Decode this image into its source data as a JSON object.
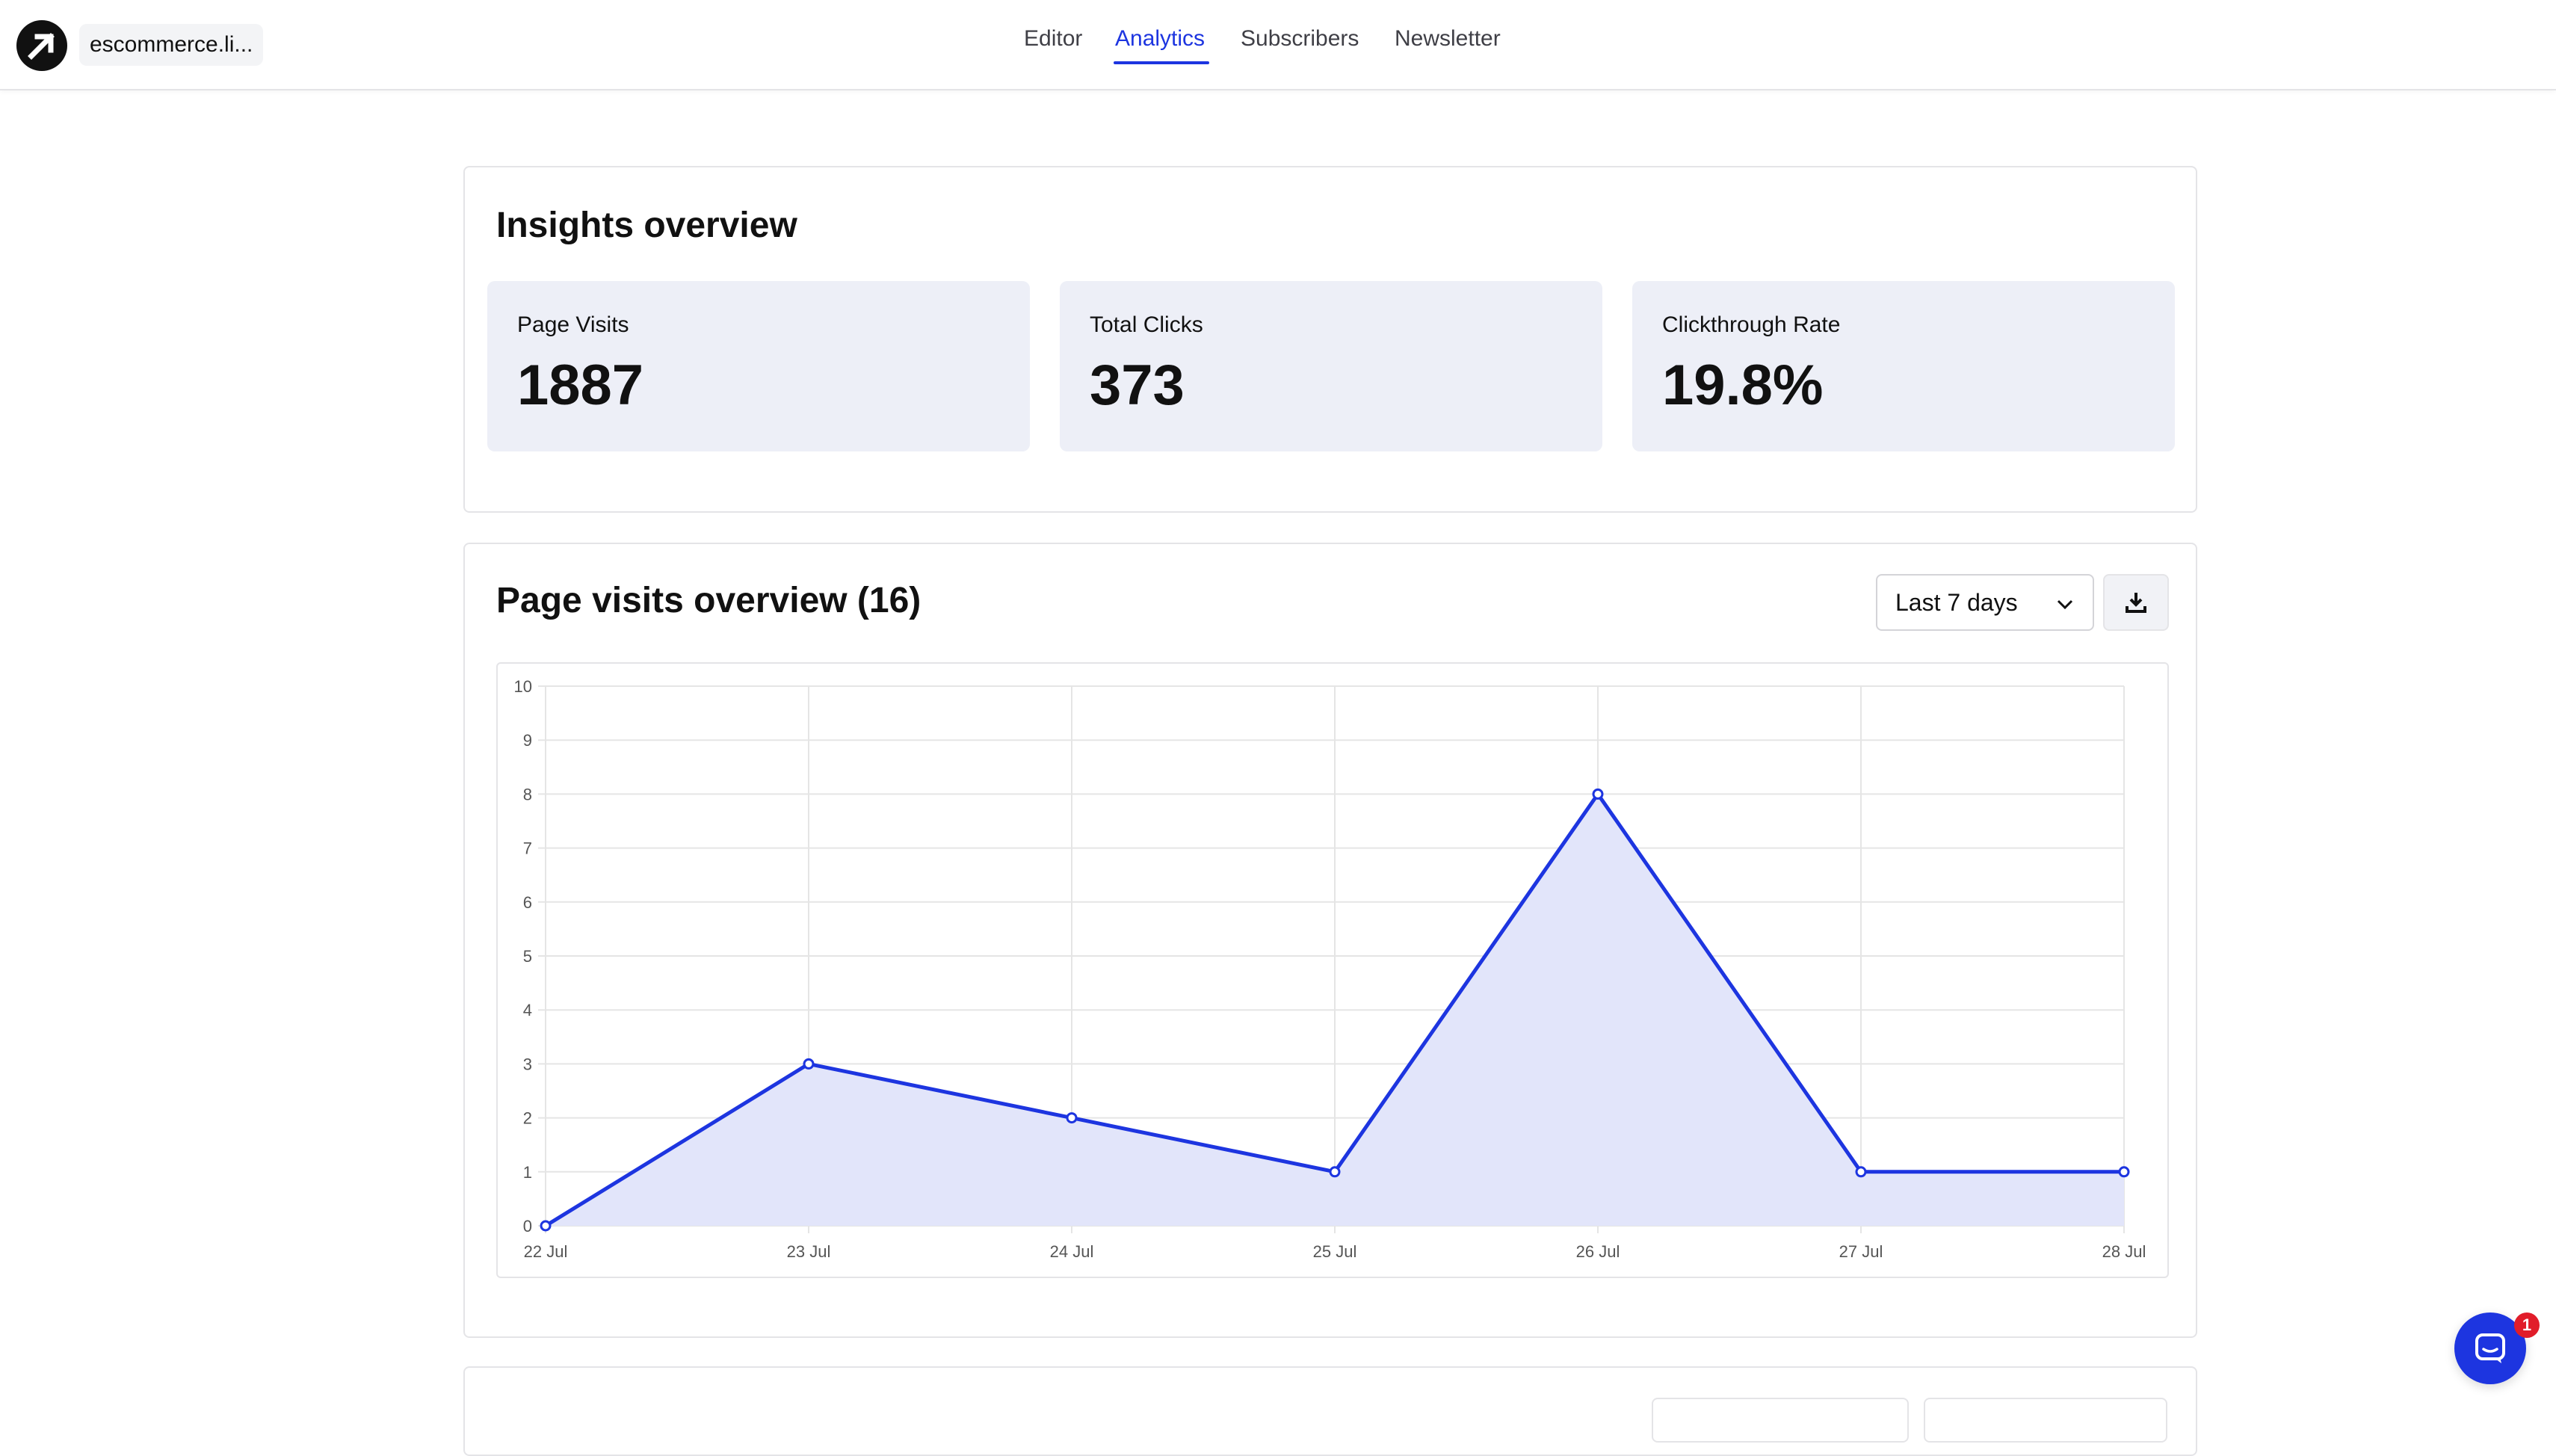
{
  "header": {
    "site_name": "escommerce.li...",
    "nav": [
      {
        "label": "Editor",
        "active": false
      },
      {
        "label": "Analytics",
        "active": true
      },
      {
        "label": "Subscribers",
        "active": false
      },
      {
        "label": "Newsletter",
        "active": false
      }
    ]
  },
  "insights": {
    "title": "Insights overview",
    "stats": [
      {
        "label": "Page Visits",
        "value": "1887"
      },
      {
        "label": "Total Clicks",
        "value": "373"
      },
      {
        "label": "Clickthrough Rate",
        "value": "19.8%"
      }
    ]
  },
  "visits": {
    "title": "Page visits overview (16)",
    "range_select": "Last 7 days",
    "download_icon": "download-icon"
  },
  "chart_data": {
    "type": "area",
    "categories": [
      "22 Jul",
      "23 Jul",
      "24 Jul",
      "25 Jul",
      "26 Jul",
      "27 Jul",
      "28 Jul"
    ],
    "values": [
      0,
      3,
      2,
      1,
      8,
      1,
      1
    ],
    "ylim": [
      0,
      10
    ],
    "yticks": [
      0,
      1,
      2,
      3,
      4,
      5,
      6,
      7,
      8,
      9,
      10
    ],
    "grid": true,
    "line_color": "#1d35e0",
    "fill_color": "#e2e5fa"
  },
  "chat": {
    "badge": "1",
    "icon": "chat-icon"
  },
  "colors": {
    "accent": "#1d35e0",
    "stat_bg": "#edeff7",
    "badge": "#e11d2a"
  }
}
